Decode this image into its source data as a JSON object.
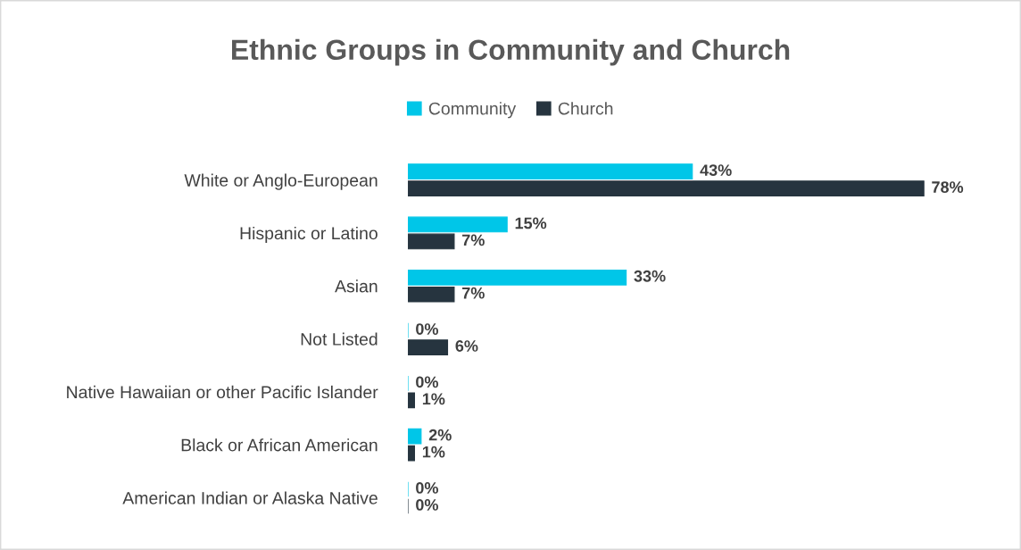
{
  "chart_data": {
    "type": "bar",
    "orientation": "horizontal",
    "title": "Ethnic Groups in Community and Church",
    "categories": [
      "White or Anglo-European",
      "Hispanic or Latino",
      "Asian",
      "Not Listed",
      "Native Hawaiian or other Pacific Islander",
      "Black or African American",
      "American Indian or Alaska Native"
    ],
    "series": [
      {
        "name": "Community",
        "color": "#00c6e8",
        "values": [
          43,
          15,
          33,
          0,
          0,
          2,
          0
        ],
        "value_labels": [
          "43%",
          "15%",
          "33%",
          "0%",
          "0%",
          "2%",
          "0%"
        ]
      },
      {
        "name": "Church",
        "color": "#26343f",
        "values": [
          78,
          7,
          7,
          6,
          1,
          1,
          0
        ],
        "value_labels": [
          "78%",
          "7%",
          "7%",
          "6%",
          "1%",
          "1%",
          "0%"
        ]
      }
    ],
    "legend": "top",
    "grid": false,
    "tick_labels": "y"
  }
}
